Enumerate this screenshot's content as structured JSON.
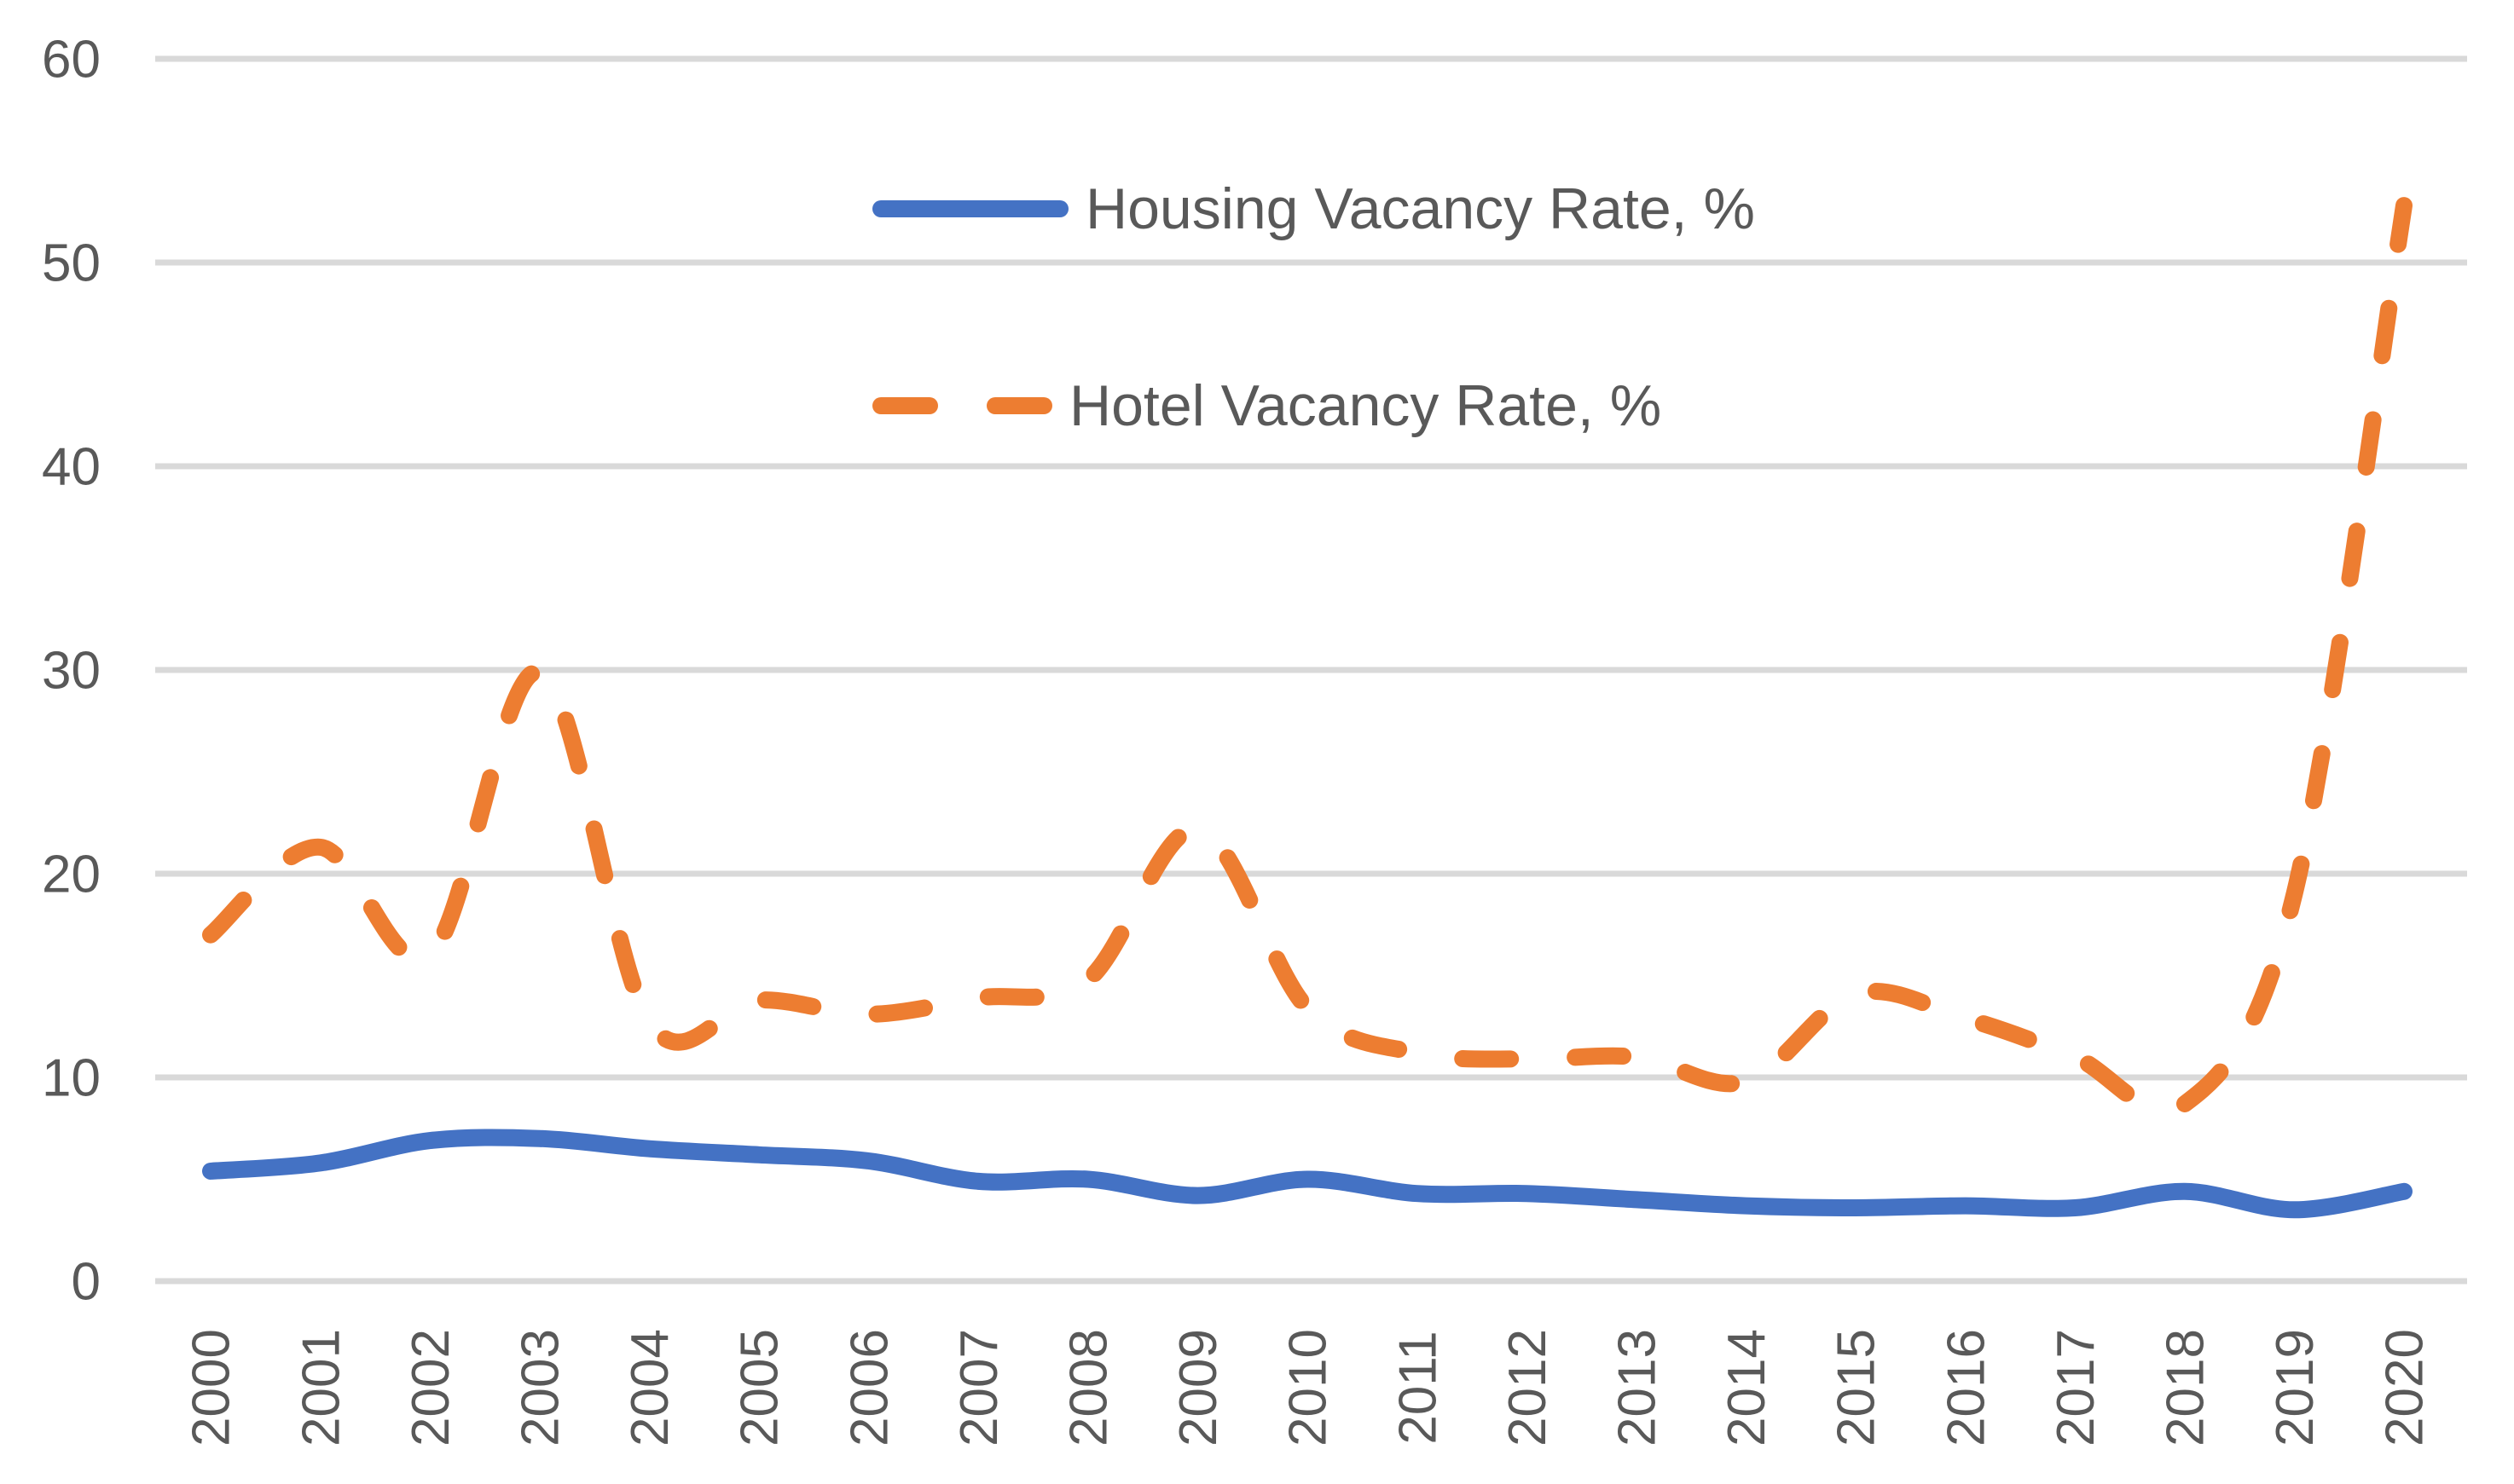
{
  "chart_data": {
    "type": "line",
    "title": "",
    "xlabel": "",
    "ylabel": "",
    "categories": [
      "2000",
      "2001",
      "2002",
      "2003",
      "2004",
      "2005",
      "2006",
      "2007",
      "2008",
      "2009",
      "2010",
      "2011",
      "2012",
      "2013",
      "2014",
      "2015",
      "2016",
      "2017",
      "2018",
      "2019",
      "2020"
    ],
    "series": [
      {
        "name": "Housing Vacancy Rate, %",
        "color": "#4472C4",
        "line_style": "solid",
        "values": [
          5.4,
          5.8,
          6.9,
          7.0,
          6.5,
          6.2,
          5.9,
          4.9,
          5.0,
          4.2,
          5.0,
          4.3,
          4.3,
          4.0,
          3.7,
          3.6,
          3.7,
          3.6,
          4.4,
          3.5,
          4.4
        ]
      },
      {
        "name": "Hotel Vacancy Rate, %",
        "color": "#ED7D31",
        "line_style": "dashed",
        "values": [
          17.0,
          21.3,
          16.0,
          29.9,
          12.7,
          13.8,
          13.1,
          13.9,
          14.8,
          22.2,
          13.4,
          11.2,
          10.9,
          11.0,
          9.8,
          14.1,
          12.9,
          11.0,
          8.7,
          19.0,
          52.8
        ]
      }
    ],
    "ylim": [
      0,
      60
    ],
    "yticks": [
      0,
      10,
      20,
      30,
      40,
      50,
      60
    ],
    "grid": "horizontal",
    "line_smoothing": true,
    "legend_position": "upper-left-stacked"
  },
  "style": {
    "background": "#FFFFFF",
    "gridline_color": "#D9D9D9",
    "axis_label_color": "#595959",
    "housing_color": "#4472C4",
    "hotel_color": "#ED7D31"
  }
}
